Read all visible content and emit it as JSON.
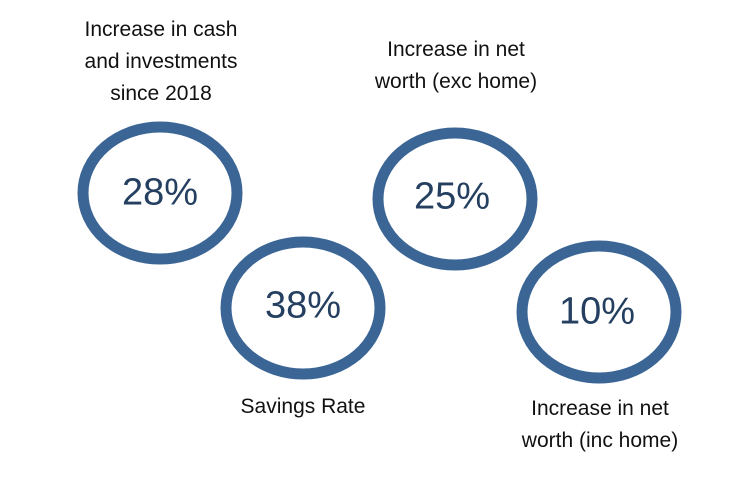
{
  "ring_color": "#3a6595",
  "metrics": [
    {
      "value": "28%",
      "label_lines": [
        "Increase in cash",
        "and investments",
        "since 2018"
      ]
    },
    {
      "value": "38%",
      "label_lines": [
        "Savings Rate"
      ]
    },
    {
      "value": "25%",
      "label_lines": [
        "Increase in net",
        "worth (exc home)"
      ]
    },
    {
      "value": "10%",
      "label_lines": [
        "Increase in net",
        "worth (inc home)"
      ]
    }
  ]
}
